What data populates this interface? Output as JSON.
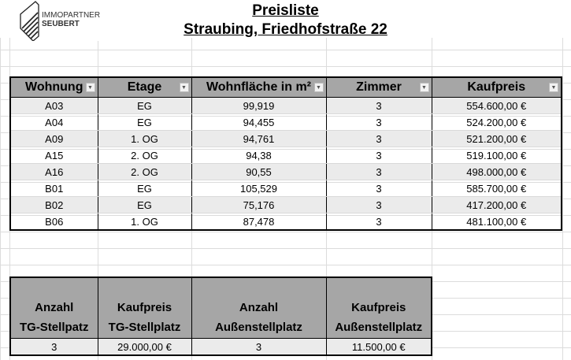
{
  "logo": {
    "text_line1": "IMMOPARTNER",
    "text_line2": "SEUBERT"
  },
  "title": "Preisliste",
  "subtitle": "Straubing, Friedhofstraße 22",
  "apartments": {
    "headers": [
      "Wohnung",
      "Etage",
      "Wohnfläche in m²",
      "Zimmer",
      "Kaufpreis"
    ],
    "rows": [
      [
        "A03",
        "EG",
        "99,919",
        "3",
        "554.600,00 €"
      ],
      [
        "A04",
        "EG",
        "94,455",
        "3",
        "524.200,00 €"
      ],
      [
        "A09",
        "1. OG",
        "94,761",
        "3",
        "521.200,00 €"
      ],
      [
        "A15",
        "2. OG",
        "94,38",
        "3",
        "519.100,00 €"
      ],
      [
        "A16",
        "2. OG",
        "90,55",
        "3",
        "498.000,00 €"
      ],
      [
        "B01",
        "EG",
        "105,529",
        "3",
        "585.700,00 €"
      ],
      [
        "B02",
        "EG",
        "75,176",
        "3",
        "417.200,00 €"
      ],
      [
        "B06",
        "1. OG",
        "87,478",
        "3",
        "481.100,00 €"
      ]
    ]
  },
  "parking": {
    "headers": [
      [
        "Anzahl",
        "TG-Stellpatz"
      ],
      [
        "Kaufpreis",
        "TG-Stellplatz"
      ],
      [
        "Anzahl",
        "Außenstellplatz"
      ],
      [
        "Kaufpreis",
        "Außenstellplatz"
      ]
    ],
    "values": [
      "3",
      "29.000,00 €",
      "3",
      "11.500,00 €"
    ]
  },
  "icons": {
    "filter": "dropdown-filter-icon"
  }
}
